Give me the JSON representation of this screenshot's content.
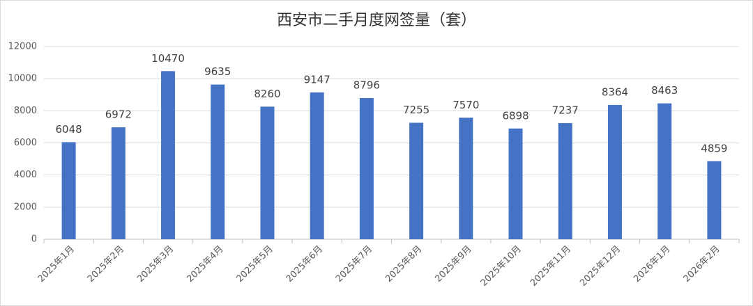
{
  "chart_data": {
    "type": "bar",
    "title": "西安市二手月度网签量（套）",
    "categories": [
      "2025年1月",
      "2025年2月",
      "2025年3月",
      "2025年4月",
      "2025年5月",
      "2025年6月",
      "2025年7月",
      "2025年8月",
      "2025年9月",
      "2025年10月",
      "2025年11月",
      "2025年12月",
      "2026年1月",
      "2026年2月"
    ],
    "values": [
      6048,
      6972,
      10470,
      9635,
      8260,
      9147,
      8796,
      7255,
      7570,
      6898,
      7237,
      8364,
      8463,
      4859
    ],
    "color": "#4472c4",
    "ylim": [
      0,
      12000
    ],
    "yticks": [
      0,
      2000,
      4000,
      6000,
      8000,
      10000,
      12000
    ],
    "grid": true
  }
}
